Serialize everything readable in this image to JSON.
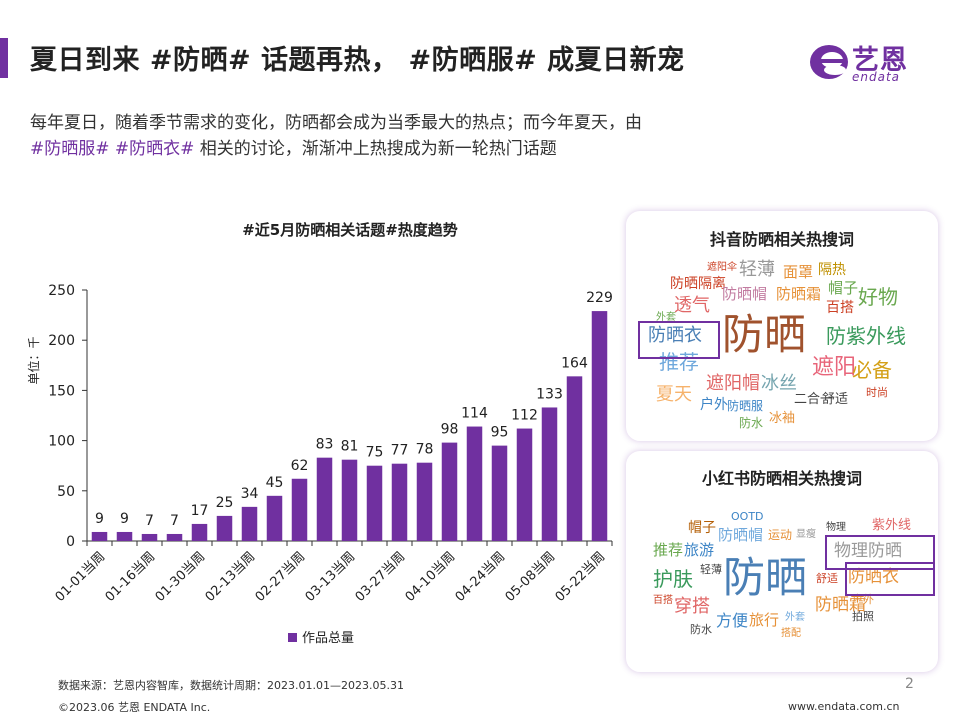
{
  "header": {
    "title": "夏日到来 #防晒# 话题再热， #防晒服# 成夏日新宠",
    "logo_cn": "艺恩",
    "logo_en": "endata"
  },
  "intro": {
    "line1": "每年夏日，随着季节需求的变化，防晒都会成为当季最大的热点；而今年夏天，由",
    "tag1": "#防晒服#",
    "tag2": "#防晒衣#",
    "line2_rest": " 相关的讨论，渐渐冲上热搜成为新一轮热门话题"
  },
  "chart_data": {
    "type": "bar",
    "title": "#近5月防晒相关话题#热度趋势",
    "ylabel": "单位：千",
    "ylim": [
      0,
      250
    ],
    "yticks": [
      0,
      50,
      100,
      150,
      200,
      250
    ],
    "grid": false,
    "legend_position": "bottom",
    "color": "#7030a0",
    "categories": [
      "01-01当周",
      "01-09当周",
      "01-16当周",
      "01-23当周",
      "01-30当周",
      "02-06当周",
      "02-13当周",
      "02-20当周",
      "02-27当周",
      "03-06当周",
      "03-13当周",
      "03-20当周",
      "03-27当周",
      "04-03当周",
      "04-10当周",
      "04-17当周",
      "04-24当周",
      "05-01当周",
      "05-08当周",
      "05-15当周",
      "05-22当周"
    ],
    "visible_tick_labels": [
      "01-01当周",
      "01-16当周",
      "01-30当周",
      "02-13当周",
      "02-27当周",
      "03-13当周",
      "03-27当周",
      "04-10当周",
      "04-24当周",
      "05-08当周",
      "05-22当周"
    ],
    "series": [
      {
        "name": "作品总量",
        "values": [
          9,
          9,
          7,
          7,
          17,
          25,
          34,
          45,
          62,
          83,
          81,
          75,
          77,
          78,
          98,
          114,
          95,
          112,
          133,
          164,
          229
        ]
      }
    ]
  },
  "douyin_cloud": {
    "title": "抖音防晒相关热搜词",
    "words": [
      {
        "text": "防晒",
        "color": "#a0522d"
      },
      {
        "text": "防晒衣",
        "color": "#4a7fb5",
        "boxed": true
      },
      {
        "text": "防紫外线",
        "color": "#3a9a5c"
      },
      {
        "text": "遮阳",
        "color": "#e8657a"
      },
      {
        "text": "必备",
        "color": "#d4a017"
      },
      {
        "text": "好物",
        "color": "#6aa84f"
      },
      {
        "text": "透气",
        "color": "#e06666"
      },
      {
        "text": "推荐",
        "color": "#6fa8dc"
      },
      {
        "text": "夏天",
        "color": "#f6b26b"
      },
      {
        "text": "遮阳帽",
        "color": "#e06666"
      },
      {
        "text": "冰丝",
        "color": "#76a5af"
      },
      {
        "text": "轻薄",
        "color": "#999999"
      },
      {
        "text": "面罩",
        "color": "#e69138"
      },
      {
        "text": "隔热",
        "color": "#bf9000"
      },
      {
        "text": "帽子",
        "color": "#6aa84f"
      },
      {
        "text": "百搭",
        "color": "#cc4125"
      },
      {
        "text": "防晒隔离",
        "color": "#cc4125"
      },
      {
        "text": "防晒帽",
        "color": "#c27ba0"
      },
      {
        "text": "防晒霜",
        "color": "#e69138"
      },
      {
        "text": "遮阳伞",
        "color": "#cc4125"
      },
      {
        "text": "外套",
        "color": "#6aa84f"
      },
      {
        "text": "户外",
        "color": "#3d85c6"
      },
      {
        "text": "防晒服",
        "color": "#3d85c6"
      },
      {
        "text": "二合一",
        "color": "#444444"
      },
      {
        "text": "舒适",
        "color": "#444444"
      },
      {
        "text": "时尚",
        "color": "#cc4125"
      },
      {
        "text": "防水",
        "color": "#6aa84f"
      },
      {
        "text": "冰袖",
        "color": "#e69138"
      }
    ]
  },
  "xhs_cloud": {
    "title": "小红书防晒相关热搜词",
    "words": [
      {
        "text": "防晒",
        "color": "#4a7fb5"
      },
      {
        "text": "物理防晒",
        "color": "#999999",
        "boxed": true
      },
      {
        "text": "防晒衣",
        "color": "#e69138",
        "boxed": true
      },
      {
        "text": "防晒霜",
        "color": "#e69138"
      },
      {
        "text": "护肤",
        "color": "#3a9a5c"
      },
      {
        "text": "穿搭",
        "color": "#e06666"
      },
      {
        "text": "推荐",
        "color": "#6aa84f"
      },
      {
        "text": "旅游",
        "color": "#3d85c6"
      },
      {
        "text": "方便",
        "color": "#3d85c6"
      },
      {
        "text": "旅行",
        "color": "#e69138"
      },
      {
        "text": "防晒帽",
        "color": "#6fa8dc"
      },
      {
        "text": "运动",
        "color": "#e69138"
      },
      {
        "text": "显瘦",
        "color": "#999999"
      },
      {
        "text": "帽子",
        "color": "#b45f06"
      },
      {
        "text": "OOTD",
        "color": "#3d85c6"
      },
      {
        "text": "物理",
        "color": "#444444"
      },
      {
        "text": "紫外线",
        "color": "#e06666"
      },
      {
        "text": "轻薄",
        "color": "#444444"
      },
      {
        "text": "舒适",
        "color": "#cc4125"
      },
      {
        "text": "户外",
        "color": "#e69138"
      },
      {
        "text": "百搭",
        "color": "#cc4125"
      },
      {
        "text": "外套",
        "color": "#6fa8dc"
      },
      {
        "text": "拍照",
        "color": "#444444"
      },
      {
        "text": "防水",
        "color": "#444444"
      },
      {
        "text": "搭配",
        "color": "#e69138"
      }
    ]
  },
  "footer": {
    "source": "数据来源：艺恩内容智库，数据统计周期：2023.01.01—2023.05.31",
    "copyright": "©2023.06 艺恩 ENDATA Inc.",
    "page": "2",
    "site": "www.endata.com.cn"
  }
}
